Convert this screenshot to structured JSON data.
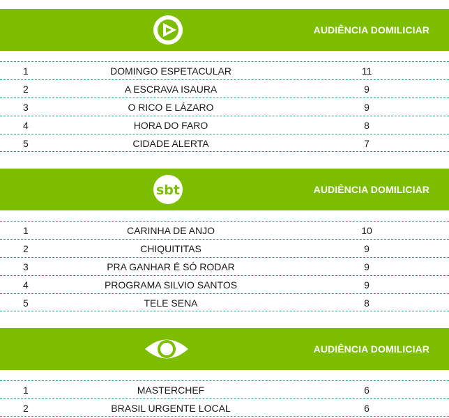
{
  "sections": [
    {
      "logo": "record-logo-icon",
      "header_label": "AUDIÊNCIA DOMILICIAR",
      "rows": [
        {
          "rank": "1",
          "program": "DOMINGO ESPETACULAR",
          "audience": "11"
        },
        {
          "rank": "2",
          "program": "A ESCRAVA ISAURA",
          "audience": "9"
        },
        {
          "rank": "3",
          "program": "O RICO E LÁZARO",
          "audience": "9"
        },
        {
          "rank": "4",
          "program": "HORA DO FARO",
          "audience": "8"
        },
        {
          "rank": "5",
          "program": "CIDADE ALERTA",
          "audience": "7"
        }
      ]
    },
    {
      "logo": "sbt-logo-icon",
      "logo_text": "sbt",
      "header_label": "AUDIÊNCIA DOMILICIAR",
      "rows": [
        {
          "rank": "1",
          "program": "CARINHA DE ANJO",
          "audience": "10"
        },
        {
          "rank": "2",
          "program": "CHIQUITITAS",
          "audience": "9"
        },
        {
          "rank": "3",
          "program": "PRA GANHAR É SÓ RODAR",
          "audience": "9"
        },
        {
          "rank": "4",
          "program": "PROGRAMA SILVIO SANTOS",
          "audience": "9"
        },
        {
          "rank": "5",
          "program": "TELE SENA",
          "audience": "8"
        }
      ]
    },
    {
      "logo": "band-eye-logo-icon",
      "header_label": "AUDIÊNCIA DOMILICIAR",
      "rows": [
        {
          "rank": "1",
          "program": "MASTERCHEF",
          "audience": "6"
        },
        {
          "rank": "2",
          "program": "BRASIL URGENTE LOCAL",
          "audience": "6"
        }
      ]
    }
  ],
  "colors": {
    "header_green": "#7cbd00",
    "divider": "#3f8f6d",
    "text": "#1a1a1a"
  }
}
